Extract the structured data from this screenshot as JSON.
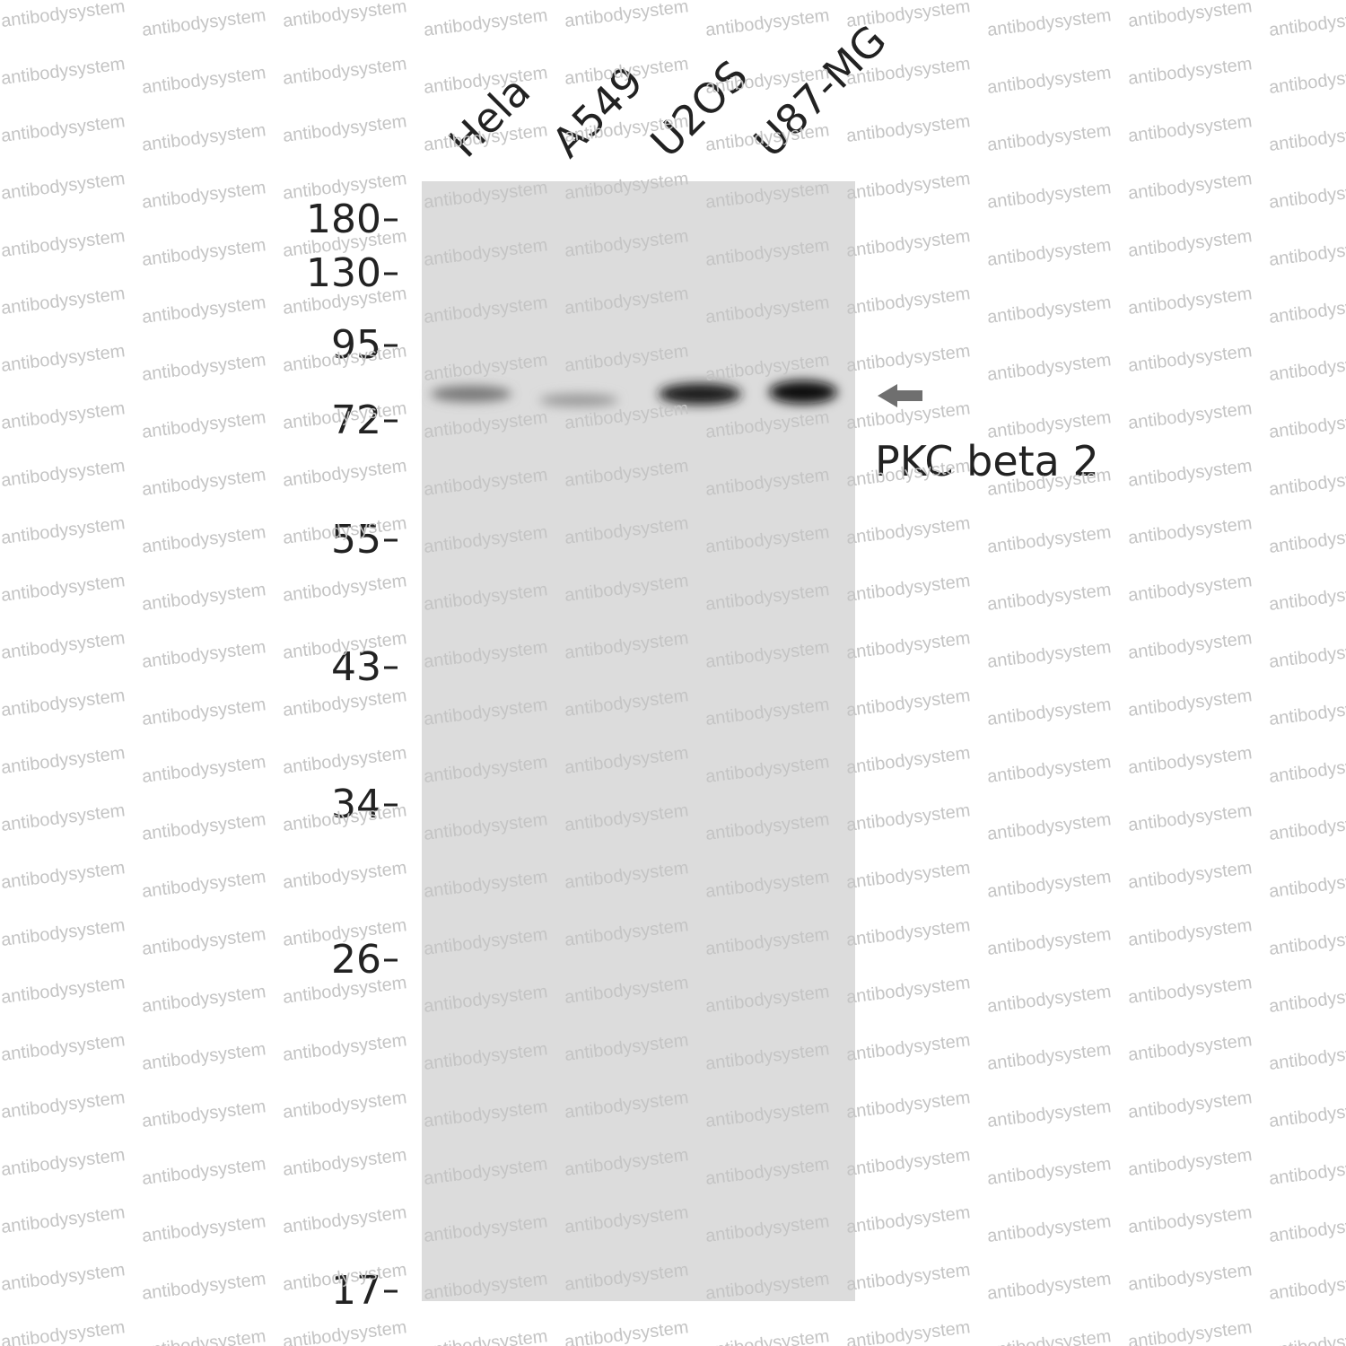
{
  "lanes": [
    "Hela",
    "A549",
    "U2OS",
    "U87-MG"
  ],
  "markers": [
    180,
    130,
    95,
    72,
    55,
    43,
    34,
    26,
    17
  ],
  "band_label": "PKC beta 2",
  "watermark": "antibodysystem"
}
